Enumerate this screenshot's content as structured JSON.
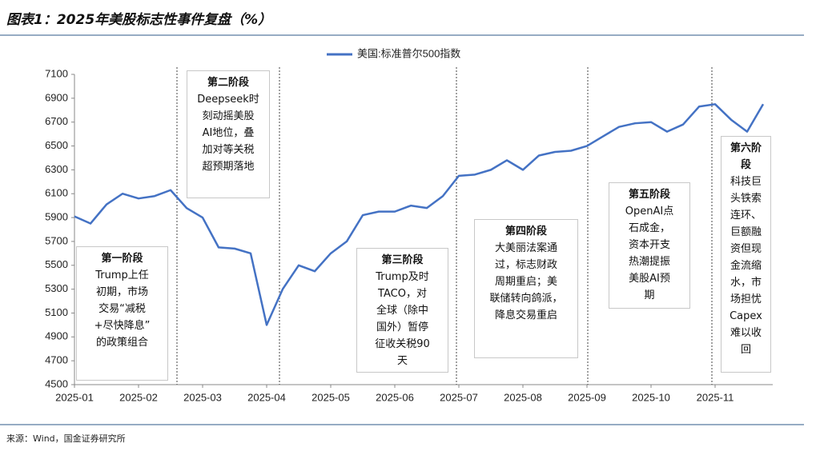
{
  "chart_data": {
    "type": "line",
    "title": "图表1：2025年美股标志性事件复盘（%）",
    "source": "来源：Wind，国金证券研究所",
    "categories": [
      "2025-01",
      null,
      null,
      null,
      "2025-02",
      null,
      null,
      null,
      "2025-03",
      null,
      null,
      null,
      "2025-04",
      null,
      null,
      null,
      "2025-05",
      null,
      null,
      null,
      "2025-06",
      null,
      null,
      null,
      "2025-07",
      null,
      null,
      null,
      "2025-08",
      null,
      null,
      null,
      "2025-09",
      null,
      null,
      null,
      "2025-10",
      null,
      null,
      null,
      "2025-11",
      null,
      null,
      null
    ],
    "series": [
      {
        "name": "美国:标准普尔500指数",
        "color": "#4472c4",
        "values": [
          5910,
          5850,
          6010,
          6100,
          6060,
          6080,
          6130,
          5980,
          5900,
          5650,
          5640,
          5600,
          5000,
          5300,
          5500,
          5450,
          5600,
          5700,
          5920,
          5950,
          5950,
          6000,
          5980,
          6080,
          6250,
          6260,
          6300,
          6380,
          6300,
          6420,
          6450,
          6460,
          6500,
          6580,
          6660,
          6690,
          6700,
          6620,
          6680,
          6830,
          6850,
          6720,
          6620,
          6850
        ]
      }
    ],
    "ylim": [
      4500,
      7100
    ],
    "yticks": [
      4500,
      4700,
      4900,
      5100,
      5300,
      5500,
      5700,
      5900,
      6100,
      6300,
      6500,
      6700,
      6900,
      7100
    ],
    "annotations": [
      {
        "title_lines": [
          "第一阶段"
        ],
        "lines": [
          "Trump上任",
          "初期，市场",
          "交易“减税",
          "+尽快降息”",
          "的政策组合"
        ]
      },
      {
        "title_lines": [
          "第二阶段"
        ],
        "lines": [
          "Deepseek时",
          "刻动摇美股",
          "AI地位，叠",
          "加对等关税",
          "超预期落地"
        ]
      },
      {
        "title_lines": [
          "第三阶段"
        ],
        "lines": [
          "Trump及时",
          "TACO，对",
          "全球（除中",
          "国外）暂停",
          "征收关税90",
          "天"
        ]
      },
      {
        "title_lines": [
          "第四阶段"
        ],
        "lines": [
          "大美丽法案通",
          "过，标志财政",
          "周期重启；美",
          "联储转向鸽派，",
          "降息交易重启"
        ]
      },
      {
        "title_lines": [
          "第五阶段"
        ],
        "lines": [
          "OpenAI点",
          "石成金，",
          "资本开支",
          "热潮提振",
          "美股AI预",
          "期"
        ]
      },
      {
        "title_lines": [
          "第六阶",
          "段"
        ],
        "lines": [
          "科技巨",
          "头铁索",
          "连环、",
          "巨额融",
          "资但现",
          "金流缩",
          "水，市",
          "场担忧",
          "Capex",
          "难以收",
          "回"
        ]
      }
    ]
  }
}
